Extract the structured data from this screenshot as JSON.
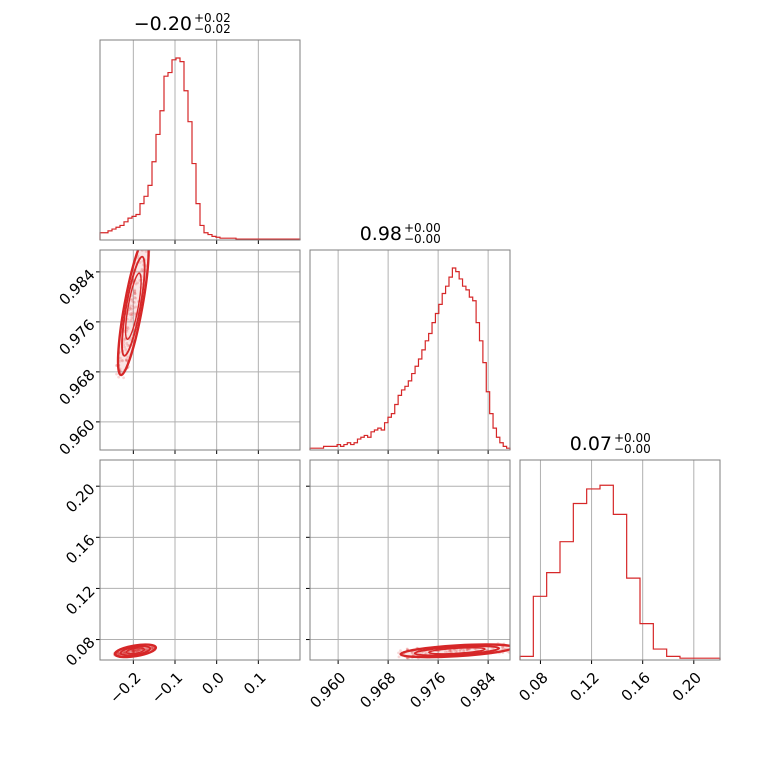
{
  "colors": {
    "series": "#d62728",
    "grid": "#b0b0b0",
    "frame": "#7f7f7f"
  },
  "chart_data": {
    "type": "corner",
    "grid": true,
    "parameters": [
      {
        "value": "−0.20",
        "plus": "+0.02",
        "minus": "−0.02",
        "range": [
          -0.28,
          0.2
        ],
        "ticks": [
          "−0.2",
          "−0.1",
          "0.0",
          "0.1"
        ],
        "tick_values": [
          -0.2,
          -0.1,
          0.0,
          0.1
        ]
      },
      {
        "value": "0.98",
        "plus": "+0.00",
        "minus": "−0.00",
        "range": [
          0.9555,
          0.9875
        ],
        "ticks": [
          "0.960",
          "0.968",
          "0.976",
          "0.984"
        ],
        "tick_values": [
          0.96,
          0.968,
          0.976,
          0.984
        ]
      },
      {
        "value": "0.07",
        "plus": "+0.00",
        "minus": "−0.00",
        "range": [
          0.064,
          0.2205
        ],
        "ticks": [
          "0.08",
          "0.12",
          "0.16",
          "0.20"
        ],
        "tick_values": [
          0.08,
          0.12,
          0.16,
          0.2
        ]
      }
    ],
    "histograms": [
      {
        "parameter": 0,
        "edges": [
          -0.28,
          0.2
        ],
        "counts": [
          0.04,
          0.04,
          0.05,
          0.06,
          0.07,
          0.08,
          0.1,
          0.12,
          0.13,
          0.14,
          0.2,
          0.24,
          0.3,
          0.43,
          0.58,
          0.71,
          0.9,
          0.92,
          0.99,
          1.0,
          0.98,
          0.82,
          0.65,
          0.42,
          0.2,
          0.08,
          0.04,
          0.03,
          0.02,
          0.015,
          0.01,
          0.01,
          0.01,
          0.01,
          0.005,
          0.005,
          0.005,
          0.005,
          0.005,
          0.005,
          0.005,
          0.005,
          0.005,
          0.005,
          0.005,
          0.005,
          0.005,
          0.005,
          0.005,
          0.005
        ]
      },
      {
        "parameter": 1,
        "edges": [
          0.9555,
          0.9875
        ],
        "counts": [
          0.01,
          0.01,
          0.01,
          0.01,
          0.02,
          0.02,
          0.02,
          0.02,
          0.03,
          0.02,
          0.03,
          0.04,
          0.03,
          0.04,
          0.06,
          0.07,
          0.08,
          0.07,
          0.1,
          0.11,
          0.12,
          0.11,
          0.15,
          0.18,
          0.2,
          0.25,
          0.3,
          0.33,
          0.35,
          0.38,
          0.42,
          0.46,
          0.5,
          0.55,
          0.6,
          0.64,
          0.7,
          0.75,
          0.8,
          0.86,
          0.9,
          0.95,
          1.0,
          0.98,
          0.94,
          0.9,
          0.88,
          0.84,
          0.82,
          0.7,
          0.6,
          0.48,
          0.32,
          0.2,
          0.12,
          0.07,
          0.04,
          0.02,
          0.01
        ]
      },
      {
        "parameter": 2,
        "edges": [
          0.064,
          0.2205
        ],
        "counts": [
          0.02,
          0.35,
          0.48,
          0.65,
          0.86,
          0.94,
          0.96,
          0.8,
          0.45,
          0.2,
          0.06,
          0.02,
          0.01,
          0.01,
          0.01
        ]
      }
    ],
    "pair_panels": [
      {
        "x": 0,
        "y": 1,
        "center": [
          -0.2,
          0.9785
        ],
        "major": [
          -0.225,
          0.9645,
          -0.165,
          0.9865
        ],
        "contours": [
          {
            "w": 0.018,
            "scale": 1.0
          },
          {
            "w": 0.013,
            "scale": 0.72
          },
          {
            "w": 0.008,
            "scale": 0.48
          }
        ]
      },
      {
        "x": 0,
        "y": 2,
        "center": [
          -0.195,
          0.0712
        ],
        "major": [
          -0.248,
          0.0686,
          -0.15,
          0.0738
        ],
        "contours": [
          {
            "w": 0.0042,
            "scale": 1.0
          },
          {
            "w": 0.003,
            "scale": 0.72
          },
          {
            "w": 0.0019,
            "scale": 0.44
          }
        ]
      },
      {
        "x": 1,
        "y": 2,
        "center": [
          0.979,
          0.0712
        ],
        "major": [
          0.9685,
          0.0692,
          0.9865,
          0.0745
        ],
        "contours": [
          {
            "w": 0.0042,
            "scale": 1.0
          },
          {
            "w": 0.003,
            "scale": 0.75
          },
          {
            "w": 0.0018,
            "scale": 0.5
          }
        ]
      }
    ]
  }
}
